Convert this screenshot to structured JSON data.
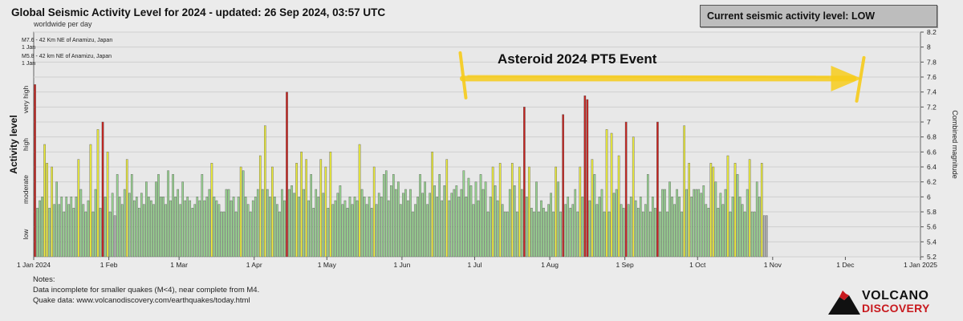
{
  "header": {
    "title": "Global Seismic Activity Level for 2024 - updated: 26 Sep 2024, 03:57 UTC",
    "subtitle": "worldwide per day"
  },
  "status_box": {
    "text": "Current seismic activity level: LOW"
  },
  "annotation": {
    "text": "Asteroid 2024 PT5 Event",
    "color": "#f7cc1b",
    "start": "2024-07-01",
    "end": "2024-12-07"
  },
  "notes": {
    "heading": "Notes:",
    "line1": "Data incomplete for smaller quakes (M<4), near complete from M4.",
    "line2": "Quake data: www.volcanodiscovery.com/earthquakes/today.html"
  },
  "logo": {
    "line1": "VOLCANO",
    "line2": "DISCOVERY",
    "color": "#c8191e"
  },
  "chart_data": {
    "type": "bar",
    "title": "Global Seismic Activity Level for 2024 - updated: 26 Sep 2024, 03:57 UTC",
    "subtitle": "worldwide per day",
    "y_left_label": "Activity level",
    "y_left_bands": [
      "low",
      "moderate",
      "high",
      "very high"
    ],
    "y_right_label": "Combined magnitude",
    "ylim": [
      5.2,
      8.2
    ],
    "y_ticks": [
      "5.2",
      "5.4",
      "5.6",
      "5.8",
      "6",
      "6.2",
      "6.4",
      "6.6",
      "6.8",
      "7",
      "7.2",
      "7.4",
      "7.6",
      "7.8",
      "8",
      "8.2"
    ],
    "x_ticks": [
      {
        "label": "1 Jan 2024",
        "date": "2024-01-01"
      },
      {
        "label": "1 Feb",
        "date": "2024-02-01"
      },
      {
        "label": "1 Mar",
        "date": "2024-03-01"
      },
      {
        "label": "1 Apr",
        "date": "2024-04-01"
      },
      {
        "label": "1 May",
        "date": "2024-05-01"
      },
      {
        "label": "1 Jun",
        "date": "2024-06-01"
      },
      {
        "label": "1 Jul",
        "date": "2024-07-01"
      },
      {
        "label": "1 Aug",
        "date": "2024-08-01"
      },
      {
        "label": "1 Sep",
        "date": "2024-09-01"
      },
      {
        "label": "1 Oct",
        "date": "2024-10-01"
      },
      {
        "label": "1 Nov",
        "date": "2024-11-01"
      },
      {
        "label": "1 Dec",
        "date": "2024-12-01"
      },
      {
        "label": "1 Jan 2025",
        "date": "2025-01-01"
      }
    ],
    "xlim": [
      "2024-01-01",
      "2025-01-01"
    ],
    "grid": true,
    "event_labels": [
      {
        "text": "M7.6 - 42 Km NE of Anamizu, Japan",
        "sub": "1 Jan"
      },
      {
        "text": "M5.8 - 42 km NE of Anamizu, Japan",
        "sub": "1 Jan"
      }
    ],
    "level_colors": {
      "low": "#b4b4b4",
      "moderate": "#98d490",
      "high": "#eded3a",
      "very_high": "#c8231e"
    },
    "start_date": "2024-01-01",
    "values": [
      7.5,
      5.85,
      5.95,
      6,
      6.7,
      6.45,
      5.85,
      6.4,
      5.9,
      6.2,
      5.9,
      6,
      5.8,
      6,
      5.9,
      6,
      5.85,
      6,
      6.5,
      6.1,
      5.9,
      5.8,
      5.95,
      6.7,
      5.8,
      6.1,
      6.9,
      5.85,
      7,
      6,
      6.6,
      5.8,
      6.05,
      5.75,
      6.3,
      6.0,
      5.9,
      6.1,
      6.5,
      6.05,
      6.3,
      5.95,
      6.0,
      5.85,
      6.05,
      5.9,
      6.2,
      6.0,
      5.95,
      5.9,
      6.2,
      6.3,
      6.0,
      6.0,
      5.9,
      6.35,
      5.95,
      6.3,
      6.0,
      6.1,
      5.9,
      6.2,
      5.95,
      6.0,
      5.95,
      5.85,
      5.9,
      6.0,
      5.95,
      6.3,
      5.95,
      6.0,
      6.1,
      6.45,
      6.0,
      5.95,
      5.9,
      5.8,
      5.8,
      6.1,
      6.1,
      5.95,
      6.0,
      5.8,
      6.0,
      6.4,
      6.35,
      6.0,
      5.9,
      5.8,
      5.95,
      6.0,
      6.1,
      6.55,
      6.1,
      6.95,
      6.1,
      6.0,
      6.4,
      6.0,
      5.9,
      5.8,
      6.1,
      5.95,
      7.4,
      6.1,
      6.15,
      6.05,
      6.45,
      6.0,
      6.6,
      6.1,
      6.5,
      5.95,
      6.3,
      5.85,
      6.1,
      6.0,
      6.5,
      6.05,
      6.4,
      5.85,
      6.6,
      5.9,
      5.95,
      6.05,
      6.15,
      5.9,
      5.95,
      5.85,
      6.0,
      5.9,
      6.0,
      5.95,
      6.7,
      6.1,
      6.0,
      5.9,
      6.0,
      5.85,
      6.4,
      5.9,
      6.05,
      6.0,
      6.3,
      6.35,
      5.95,
      6.15,
      6.3,
      6.1,
      6.2,
      5.9,
      6.05,
      6.1,
      5.95,
      6.1,
      5.8,
      5.9,
      6.0,
      6.3,
      6.05,
      6.2,
      5.9,
      6.05,
      6.6,
      6.15,
      6.0,
      6.3,
      5.95,
      6.15,
      6.5,
      5.95,
      6.05,
      6.1,
      6.15,
      6.0,
      6.1,
      6.35,
      6.0,
      6.25,
      6.15,
      5.9,
      6.2,
      5.95,
      6.3,
      6.1,
      6.2,
      5.8,
      6.0,
      6.4,
      6.15,
      5.95,
      6.45,
      5.9,
      5.8,
      5.8,
      6.1,
      6.45,
      6.15,
      5.8,
      6.4,
      6.1,
      7.2,
      6.0,
      6.4,
      5.85,
      5.8,
      6.2,
      5.8,
      5.95,
      5.85,
      5.8,
      5.9,
      6.05,
      5.8,
      6.4,
      6.2,
      5.8,
      7.1,
      5.9,
      6.0,
      5.85,
      5.9,
      6.1,
      5.8,
      6.4,
      6.0,
      7.35,
      7.3,
      5.95,
      6.5,
      6.3,
      5.9,
      6.0,
      6.1,
      5.8,
      6.9,
      5.8,
      6.85,
      6.05,
      6.1,
      6.55,
      5.9,
      5.85,
      7.0,
      5.9,
      6.0,
      6.8,
      5.95,
      5.85,
      6.0,
      5.8,
      5.9,
      6.3,
      5.8,
      6.0,
      5.85,
      7.0,
      5.8,
      6.1,
      6.1,
      5.8,
      6.2,
      6.0,
      5.9,
      6.1,
      6.0,
      5.8,
      6.95,
      6.1,
      6.45,
      6.0,
      6.1,
      6.1,
      6.1,
      6.05,
      6.15,
      5.9,
      5.85,
      6.45,
      6.4,
      6.2,
      5.85,
      6.05,
      5.9,
      6.1,
      6.55,
      5.8,
      6.0,
      6.45,
      6.3,
      6.0,
      5.9,
      5.8,
      6.1,
      6.5,
      5.8,
      5.8,
      6.2,
      6.0,
      6.45,
      5.75,
      5.75
    ]
  }
}
